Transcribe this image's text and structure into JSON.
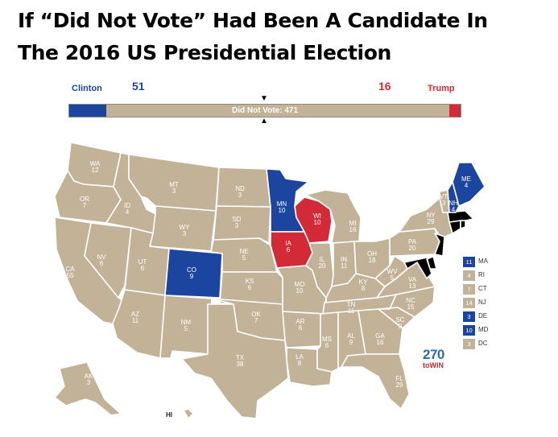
{
  "title": {
    "line1": "If “Did Not Vote” Had Been A Candidate In",
    "line2": "The 2016 US Presidential Election"
  },
  "colors": {
    "clinton": "#1c45a0",
    "trump": "#d22a37",
    "did_not_vote": "#c2b297"
  },
  "totals": {
    "clinton": {
      "name": "Clinton",
      "votes": 51
    },
    "trump": {
      "name": "Trump",
      "votes": 16
    },
    "did_not_vote": {
      "label": "Did Not Vote: 471",
      "votes": 471
    }
  },
  "map": {
    "states": [
      {
        "code": "WA",
        "ev": "12",
        "winner": "did_not_vote"
      },
      {
        "code": "OR",
        "ev": "7",
        "winner": "did_not_vote"
      },
      {
        "code": "CA",
        "ev": "55",
        "winner": "did_not_vote"
      },
      {
        "code": "NV",
        "ev": "6",
        "winner": "did_not_vote"
      },
      {
        "code": "ID",
        "ev": "4",
        "winner": "did_not_vote"
      },
      {
        "code": "MT",
        "ev": "3",
        "winner": "did_not_vote"
      },
      {
        "code": "WY",
        "ev": "3",
        "winner": "did_not_vote"
      },
      {
        "code": "UT",
        "ev": "6",
        "winner": "did_not_vote"
      },
      {
        "code": "AZ",
        "ev": "11",
        "winner": "did_not_vote"
      },
      {
        "code": "CO",
        "ev": "9",
        "winner": "clinton"
      },
      {
        "code": "NM",
        "ev": "5",
        "winner": "did_not_vote"
      },
      {
        "code": "ND",
        "ev": "3",
        "winner": "did_not_vote"
      },
      {
        "code": "SD",
        "ev": "3",
        "winner": "did_not_vote"
      },
      {
        "code": "NE",
        "ev": "5",
        "winner": "did_not_vote"
      },
      {
        "code": "KS",
        "ev": "6",
        "winner": "did_not_vote"
      },
      {
        "code": "OK",
        "ev": "7",
        "winner": "did_not_vote"
      },
      {
        "code": "TX",
        "ev": "38",
        "winner": "did_not_vote"
      },
      {
        "code": "MN",
        "ev": "10",
        "winner": "clinton"
      },
      {
        "code": "IA",
        "ev": "6",
        "winner": "trump"
      },
      {
        "code": "MO",
        "ev": "10",
        "winner": "did_not_vote"
      },
      {
        "code": "AR",
        "ev": "6",
        "winner": "did_not_vote"
      },
      {
        "code": "LA",
        "ev": "8",
        "winner": "did_not_vote"
      },
      {
        "code": "WI",
        "ev": "10",
        "winner": "trump"
      },
      {
        "code": "IL",
        "ev": "20",
        "winner": "did_not_vote"
      },
      {
        "code": "MI",
        "ev": "16",
        "winner": "did_not_vote"
      },
      {
        "code": "IN",
        "ev": "11",
        "winner": "did_not_vote"
      },
      {
        "code": "OH",
        "ev": "18",
        "winner": "did_not_vote"
      },
      {
        "code": "KY",
        "ev": "8",
        "winner": "did_not_vote"
      },
      {
        "code": "TN",
        "ev": "11",
        "winner": "did_not_vote"
      },
      {
        "code": "MS",
        "ev": "6",
        "winner": "did_not_vote"
      },
      {
        "code": "AL",
        "ev": "9",
        "winner": "did_not_vote"
      },
      {
        "code": "GA",
        "ev": "16",
        "winner": "did_not_vote"
      },
      {
        "code": "FL",
        "ev": "29",
        "winner": "did_not_vote"
      },
      {
        "code": "SC",
        "ev": "9",
        "winner": "did_not_vote"
      },
      {
        "code": "NC",
        "ev": "15",
        "winner": "did_not_vote"
      },
      {
        "code": "VA",
        "ev": "13",
        "winner": "did_not_vote"
      },
      {
        "code": "WV",
        "ev": "5",
        "winner": "did_not_vote"
      },
      {
        "code": "PA",
        "ev": "20",
        "winner": "did_not_vote"
      },
      {
        "code": "NY",
        "ev": "29",
        "winner": "did_not_vote"
      },
      {
        "code": "VT",
        "ev": "3",
        "winner": "did_not_vote"
      },
      {
        "code": "NH",
        "ev": "4",
        "winner": "clinton"
      },
      {
        "code": "ME",
        "ev": "4",
        "winner": "clinton"
      },
      {
        "code": "AK",
        "ev": "3",
        "winner": "did_not_vote"
      },
      {
        "code": "HI",
        "ev": "",
        "winner": "did_not_vote"
      }
    ],
    "legend": [
      {
        "code": "MA",
        "ev": "11",
        "winner": "clinton"
      },
      {
        "code": "RI",
        "ev": "4",
        "winner": "did_not_vote"
      },
      {
        "code": "CT",
        "ev": "7",
        "winner": "did_not_vote"
      },
      {
        "code": "NJ",
        "ev": "14",
        "winner": "did_not_vote"
      },
      {
        "code": "DE",
        "ev": "3",
        "winner": "clinton"
      },
      {
        "code": "MD",
        "ev": "10",
        "winner": "clinton"
      },
      {
        "code": "DC",
        "ev": "3",
        "winner": "did_not_vote"
      }
    ]
  },
  "logo": {
    "number": "270",
    "sub": "toWIN"
  }
}
